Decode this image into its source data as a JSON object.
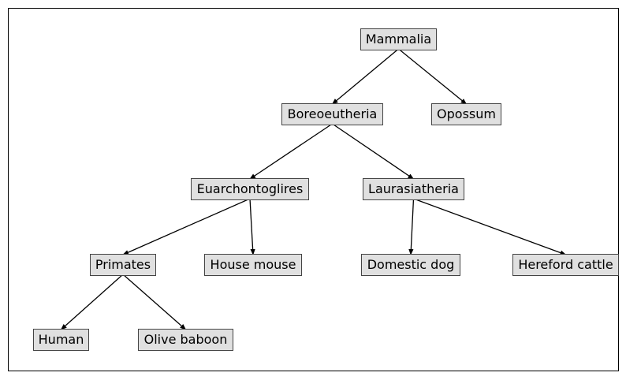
{
  "diagram": {
    "nodes": {
      "mammalia": "Mammalia",
      "boreoeutheria": "Boreoeutheria",
      "opossum": "Opossum",
      "euarchontoglires": "Euarchontoglires",
      "laurasiatheria": "Laurasiatheria",
      "primates": "Primates",
      "house_mouse": "House mouse",
      "domestic_dog": "Domestic dog",
      "hereford_cattle": "Hereford cattle",
      "human": "Human",
      "olive_baboon": "Olive baboon"
    },
    "edges": [
      [
        "mammalia",
        "boreoeutheria"
      ],
      [
        "mammalia",
        "opossum"
      ],
      [
        "boreoeutheria",
        "euarchontoglires"
      ],
      [
        "boreoeutheria",
        "laurasiatheria"
      ],
      [
        "euarchontoglires",
        "primates"
      ],
      [
        "euarchontoglires",
        "house_mouse"
      ],
      [
        "laurasiatheria",
        "domestic_dog"
      ],
      [
        "laurasiatheria",
        "hereford_cattle"
      ],
      [
        "primates",
        "human"
      ],
      [
        "primates",
        "olive_baboon"
      ]
    ],
    "colors": {
      "node_fill": "#e0e0e0",
      "node_border": "#444444",
      "edge": "#000000"
    }
  }
}
